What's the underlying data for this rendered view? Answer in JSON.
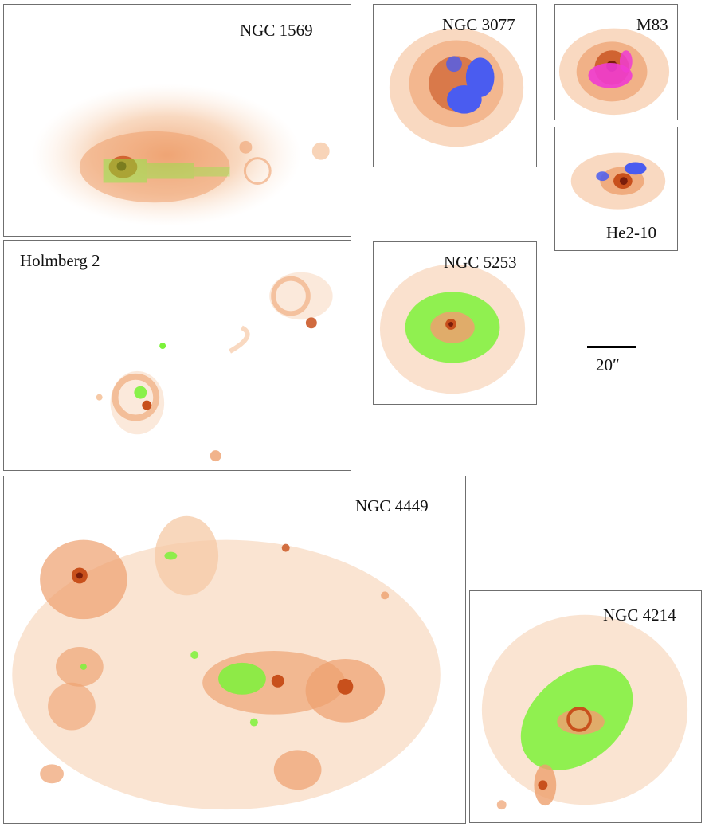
{
  "figure": {
    "panels": [
      {
        "id": "ngc1569",
        "label": "NGC 1569"
      },
      {
        "id": "ngc3077",
        "label": "NGC 3077"
      },
      {
        "id": "m83",
        "label": "M83"
      },
      {
        "id": "he210",
        "label": "He2-10"
      },
      {
        "id": "holmberg2",
        "label": "Holmberg 2"
      },
      {
        "id": "ngc5253",
        "label": "NGC 5253"
      },
      {
        "id": "ngc4449",
        "label": "NGC 4449"
      },
      {
        "id": "ngc4214",
        "label": "NGC 4214"
      }
    ],
    "scale_bar": {
      "label": "20″"
    },
    "colors": {
      "halpha_light": "#f6c9a6",
      "halpha_mid": "#eea06e",
      "halpha_dark": "#c8501c",
      "halpha_core": "#7a1d0a",
      "overlay_green": "#7cf23a",
      "overlay_blue": "#4a5cf0",
      "overlay_magenta": "#f03cd2"
    }
  }
}
